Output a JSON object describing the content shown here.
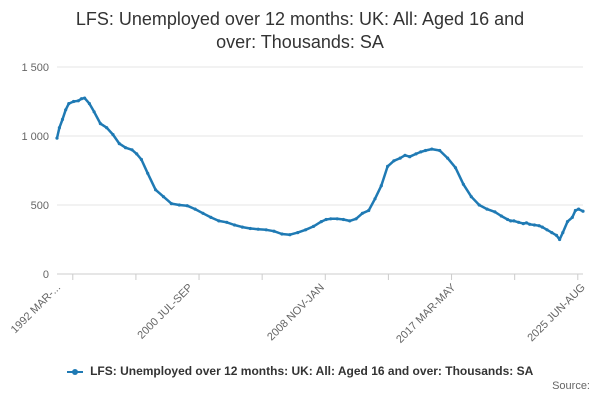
{
  "chart_data": {
    "type": "line",
    "title": "LFS: Unemployed over 12 months: UK: All: Aged 16 and over: Thousands: SA",
    "title_lines": [
      "LFS: Unemployed over 12 months: UK: All: Aged 16 and",
      "over: Thousands: SA"
    ],
    "xlabel": "",
    "ylabel": "",
    "ylim": [
      0,
      1500
    ],
    "y_ticks": [
      0,
      500,
      1000,
      1500
    ],
    "y_tick_labels": [
      "0",
      "500",
      "1 000",
      "1 500"
    ],
    "x_tick_labels": [
      "1992 MAR-...",
      "2000 JUL-SEP",
      "2008 NOV-JAN",
      "2017 MAR-MAY",
      "2025 JUN-AUG"
    ],
    "x_tick_positions": [
      1992.25,
      2000.63,
      2008.96,
      2017.29,
      2025.5
    ],
    "x_range": [
      1992.25,
      2025.58
    ],
    "grid": "horizontal",
    "legend_position": "bottom",
    "series": [
      {
        "name": "LFS: Unemployed over 12 months: UK: All: Aged 16 and over: Thousands: SA",
        "color": "#1f7ab4",
        "x": [
          1992.25,
          1992.4,
          1992.6,
          1992.8,
          1993.0,
          1993.3,
          1993.6,
          1993.8,
          1994.0,
          1994.3,
          1994.6,
          1995.0,
          1995.4,
          1995.8,
          1996.2,
          1996.6,
          1997.0,
          1997.3,
          1997.6,
          1998.0,
          1998.5,
          1999.0,
          1999.5,
          2000.0,
          2000.5,
          2001.0,
          2001.5,
          2002.0,
          2002.5,
          2003.0,
          2003.5,
          2004.0,
          2004.5,
          2005.0,
          2005.5,
          2006.0,
          2006.5,
          2007.0,
          2007.5,
          2008.0,
          2008.5,
          2009.0,
          2009.3,
          2009.6,
          2010.0,
          2010.4,
          2010.8,
          2011.2,
          2011.6,
          2012.0,
          2012.4,
          2012.8,
          2013.2,
          2013.6,
          2014.0,
          2014.3,
          2014.6,
          2015.0,
          2015.3,
          2015.6,
          2016.0,
          2016.5,
          2017.0,
          2017.5,
          2018.0,
          2018.5,
          2019.0,
          2019.5,
          2020.0,
          2020.4,
          2020.8,
          2021.0,
          2021.2,
          2021.5,
          2021.8,
          2022.0,
          2022.2,
          2022.5,
          2022.8,
          2023.0,
          2023.3,
          2023.6,
          2023.9,
          2024.1,
          2024.3,
          2024.6,
          2024.9,
          2025.1,
          2025.3,
          2025.58
        ],
        "values": [
          985,
          1060,
          1120,
          1190,
          1235,
          1250,
          1255,
          1270,
          1275,
          1235,
          1175,
          1090,
          1060,
          1010,
          945,
          915,
          900,
          870,
          830,
          730,
          610,
          560,
          510,
          500,
          495,
          470,
          440,
          410,
          385,
          375,
          355,
          340,
          330,
          325,
          320,
          310,
          290,
          285,
          300,
          320,
          345,
          380,
          395,
          400,
          400,
          395,
          385,
          400,
          440,
          460,
          545,
          640,
          780,
          820,
          840,
          860,
          850,
          870,
          885,
          895,
          905,
          895,
          840,
          770,
          650,
          560,
          500,
          470,
          450,
          420,
          395,
          385,
          385,
          375,
          365,
          370,
          360,
          355,
          350,
          340,
          320,
          300,
          280,
          250,
          300,
          380,
          410,
          460,
          470,
          455
        ]
      }
    ]
  },
  "legend": {
    "label": "LFS: Unemployed over 12 months: UK: All: Aged 16 and over: Thousands: SA"
  },
  "source": {
    "label": "Source:"
  }
}
